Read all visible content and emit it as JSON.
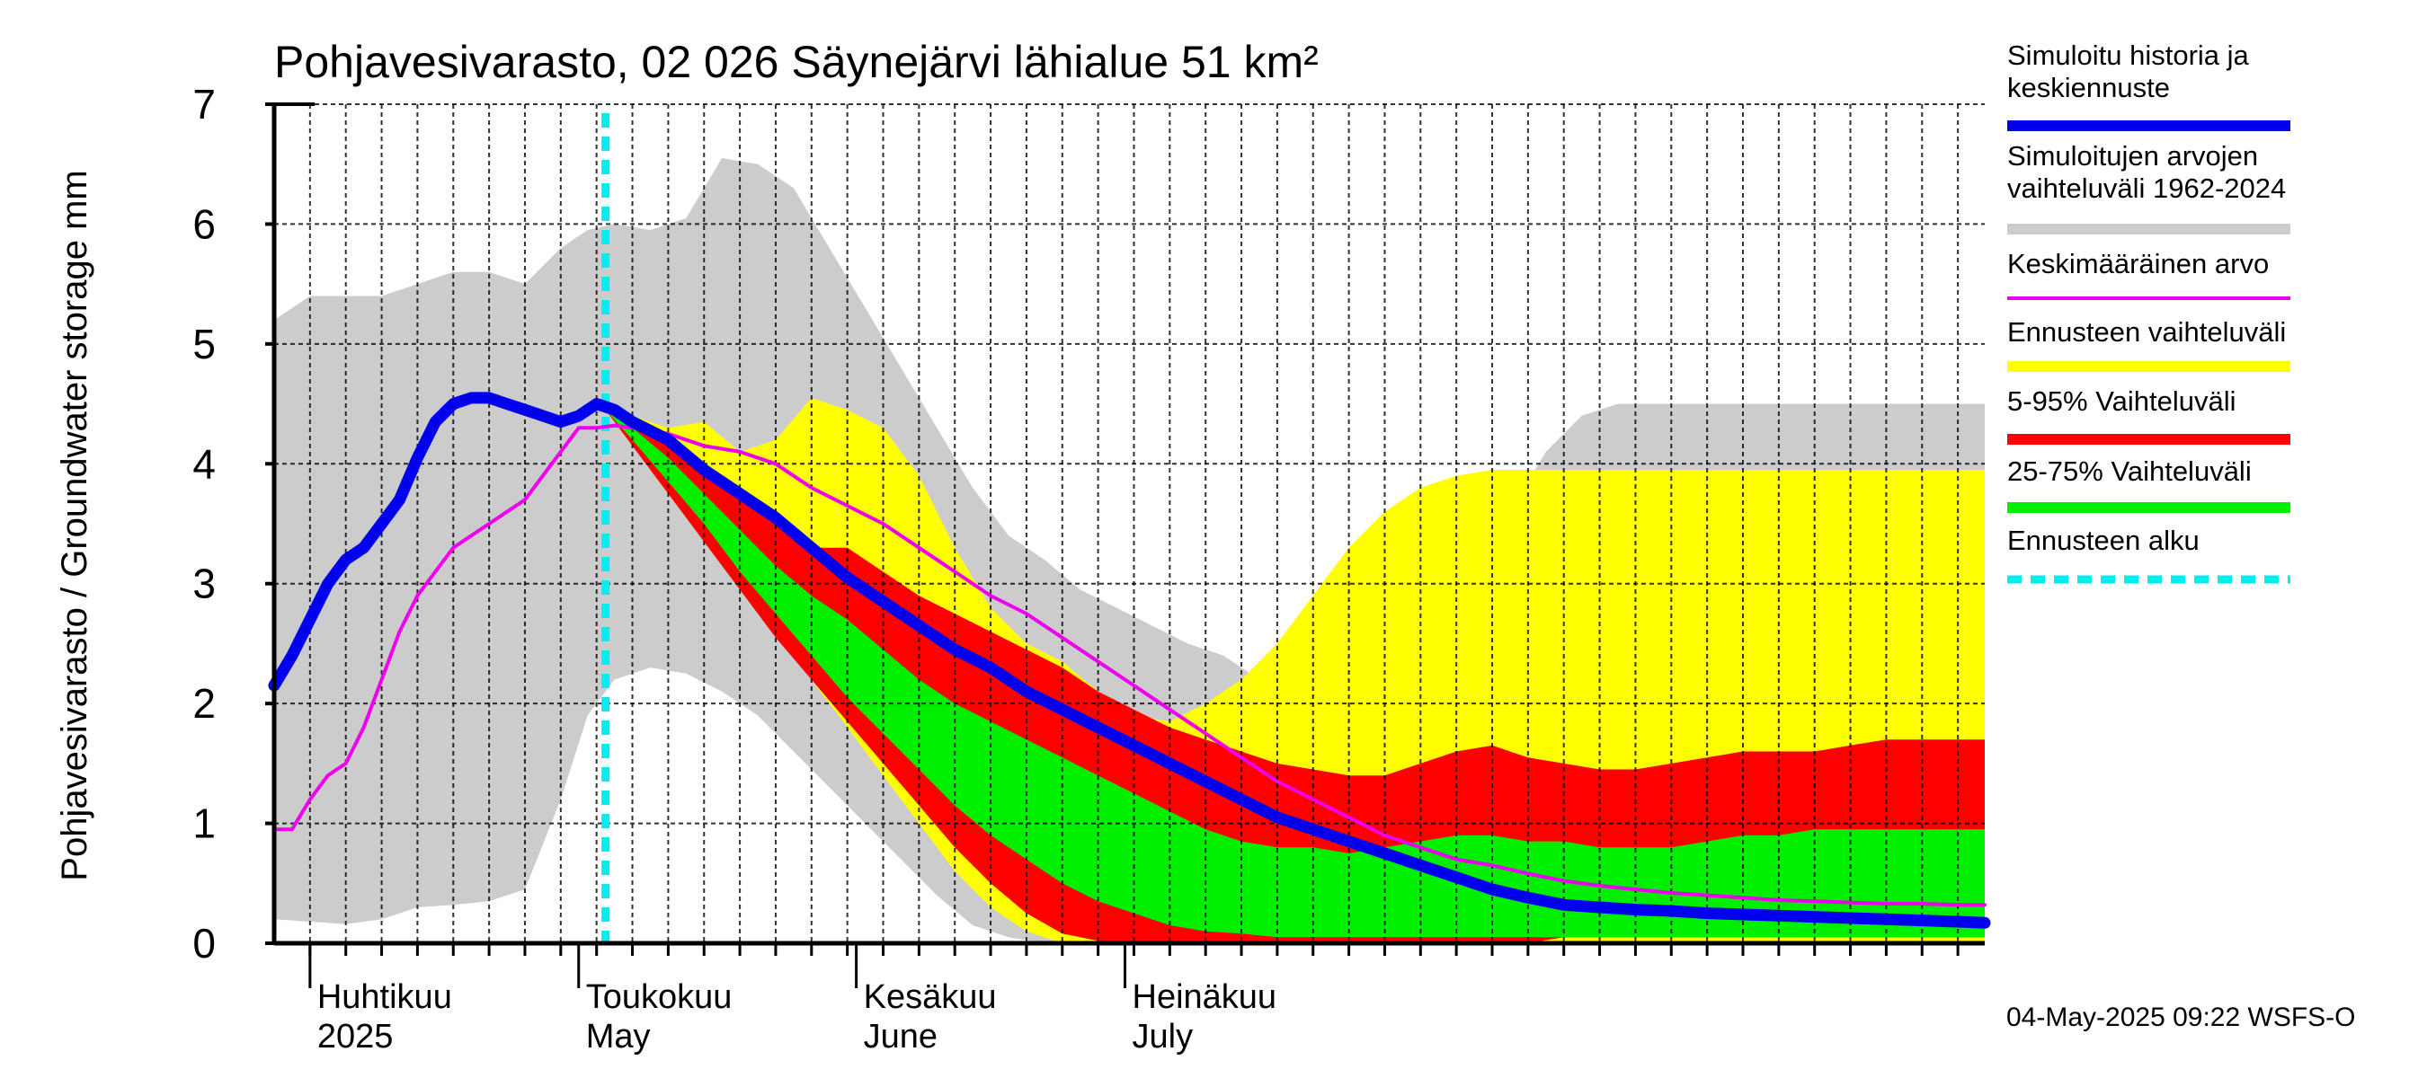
{
  "chart_data": {
    "type": "area",
    "title": "Pohjavesivarasto, 02 026 Säynejärvi lähialue 51 km²",
    "ylabel": "Pohjavesivarasto / Groundwater storage   mm",
    "ylim": [
      0,
      7
    ],
    "y_ticks": [
      "0",
      "1",
      "2",
      "3",
      "4",
      "5",
      "6",
      "7"
    ],
    "xlim_days": [
      -4,
      187
    ],
    "x_axis_note": "Day 0 = 2025-04-01",
    "month_labels": [
      {
        "day": 0,
        "fi": "Huhtikuu",
        "en": "2025"
      },
      {
        "day": 30,
        "fi": "Toukokuu",
        "en": "May"
      },
      {
        "day": 61,
        "fi": "Kesäkuu",
        "en": "June"
      },
      {
        "day": 91,
        "fi": "Heinäkuu",
        "en": "July"
      }
    ],
    "forecast_start_day": 33,
    "footer": "04-May-2025 09:22 WSFS-O",
    "legend": [
      {
        "label": "Simuloitu historia ja keskiennuste",
        "color": "#0000ee"
      },
      {
        "label": "Simuloitujen arvojen vaihteluväli 1962-2024",
        "color": "#cccccc"
      },
      {
        "label": "Keskimääräinen arvo",
        "color": "#ee00ee"
      },
      {
        "label": "Ennusteen vaihteluväli",
        "color": "#ffff00"
      },
      {
        "label": "5-95% Vaihteluväli",
        "color": "#ff0000"
      },
      {
        "label": "25-75% Vaihteluväli",
        "color": "#00ee00"
      },
      {
        "label": "Ennusteen alku",
        "color": "#00eeee"
      }
    ],
    "series": [
      {
        "name": "Simuloitujen arvojen vaihteluväli 1962-2024",
        "kind": "band",
        "x": [
          -4,
          0,
          4,
          8,
          12,
          16,
          20,
          24,
          28,
          31,
          34,
          38,
          42,
          46,
          50,
          54,
          58,
          62,
          66,
          70,
          74,
          78,
          82,
          86,
          90,
          94,
          98,
          102,
          106,
          110,
          114,
          118,
          122,
          126,
          130,
          134,
          138,
          142,
          146,
          150,
          154,
          158,
          162,
          166,
          170,
          174,
          178,
          182,
          187
        ],
        "upper": [
          5.2,
          5.4,
          5.4,
          5.4,
          5.5,
          5.6,
          5.6,
          5.5,
          5.8,
          5.95,
          6.0,
          5.95,
          6.05,
          6.55,
          6.5,
          6.3,
          5.8,
          5.3,
          4.8,
          4.3,
          3.8,
          3.4,
          3.2,
          2.95,
          2.8,
          2.65,
          2.5,
          2.4,
          2.2,
          2.05,
          2.0,
          2.3,
          2.55,
          2.6,
          3.0,
          3.6,
          4.1,
          4.4,
          4.5,
          4.5,
          4.5,
          4.5,
          4.5,
          4.5,
          4.5,
          4.5,
          4.5,
          4.5,
          4.5
        ],
        "lower": [
          0.2,
          0.18,
          0.16,
          0.2,
          0.3,
          0.32,
          0.35,
          0.45,
          1.2,
          1.9,
          2.2,
          2.3,
          2.25,
          2.1,
          1.9,
          1.6,
          1.3,
          1.0,
          0.7,
          0.4,
          0.15,
          0.05,
          0.0,
          0.0,
          0.0,
          0.0,
          0.0,
          0.0,
          0.0,
          0.0,
          0.0,
          0.0,
          0.0,
          0.0,
          0.0,
          0.0,
          0.0,
          0.0,
          0.0,
          0.0,
          0.0,
          0.0,
          0.0,
          0.0,
          0.0,
          0.0,
          0.0,
          0.0,
          0.0
        ]
      },
      {
        "name": "Ennusteen vaihteluväli",
        "kind": "band",
        "x": [
          33,
          36,
          40,
          44,
          48,
          52,
          56,
          60,
          64,
          68,
          72,
          76,
          80,
          84,
          88,
          92,
          96,
          100,
          104,
          108,
          112,
          116,
          120,
          124,
          128,
          132,
          136,
          140,
          144,
          148,
          152,
          156,
          160,
          164,
          168,
          172,
          176,
          180,
          184,
          187
        ],
        "upper": [
          4.45,
          4.4,
          4.3,
          4.35,
          4.1,
          4.2,
          4.55,
          4.45,
          4.3,
          3.9,
          3.3,
          2.8,
          2.5,
          2.35,
          2.1,
          1.9,
          1.85,
          2.0,
          2.2,
          2.5,
          2.9,
          3.3,
          3.6,
          3.8,
          3.9,
          3.95,
          3.95,
          3.95,
          3.95,
          3.95,
          3.95,
          3.95,
          3.95,
          3.95,
          3.95,
          3.95,
          3.95,
          3.95,
          3.95,
          3.95
        ],
        "lower": [
          4.45,
          4.2,
          3.8,
          3.4,
          3.0,
          2.6,
          2.2,
          1.8,
          1.4,
          1.0,
          0.6,
          0.3,
          0.1,
          0.0,
          0.0,
          0.0,
          0.0,
          0.0,
          0.0,
          0.0,
          0.0,
          0.0,
          0.0,
          0.0,
          0.0,
          0.0,
          0.0,
          0.0,
          0.0,
          0.0,
          0.0,
          0.0,
          0.0,
          0.0,
          0.0,
          0.0,
          0.0,
          0.0,
          0.0,
          0.0
        ]
      },
      {
        "name": "5-95% Vaihteluväli",
        "kind": "band",
        "x": [
          33,
          36,
          40,
          44,
          48,
          52,
          56,
          60,
          64,
          68,
          72,
          76,
          80,
          84,
          88,
          92,
          96,
          100,
          104,
          108,
          112,
          116,
          120,
          124,
          128,
          132,
          136,
          140,
          144,
          148,
          152,
          156,
          160,
          164,
          168,
          172,
          176,
          180,
          184,
          187
        ],
        "upper": [
          4.45,
          4.35,
          4.2,
          4.0,
          3.75,
          3.5,
          3.3,
          3.3,
          3.1,
          2.9,
          2.75,
          2.6,
          2.45,
          2.3,
          2.1,
          1.95,
          1.8,
          1.7,
          1.6,
          1.5,
          1.45,
          1.4,
          1.4,
          1.5,
          1.6,
          1.65,
          1.55,
          1.5,
          1.45,
          1.45,
          1.5,
          1.55,
          1.6,
          1.6,
          1.6,
          1.65,
          1.7,
          1.7,
          1.7,
          1.7
        ],
        "lower": [
          4.45,
          4.15,
          3.75,
          3.35,
          2.95,
          2.55,
          2.2,
          1.85,
          1.5,
          1.15,
          0.8,
          0.5,
          0.25,
          0.08,
          0.02,
          0.0,
          0.0,
          0.0,
          0.0,
          0.0,
          0.0,
          0.0,
          0.0,
          0.0,
          0.0,
          0.0,
          0.0,
          0.05,
          0.05,
          0.05,
          0.05,
          0.05,
          0.05,
          0.05,
          0.05,
          0.05,
          0.05,
          0.05,
          0.05,
          0.05
        ]
      },
      {
        "name": "25-75% Vaihteluväli",
        "kind": "band",
        "x": [
          33,
          36,
          40,
          44,
          48,
          52,
          56,
          60,
          64,
          68,
          72,
          76,
          80,
          84,
          88,
          92,
          96,
          100,
          104,
          108,
          112,
          116,
          120,
          124,
          128,
          132,
          136,
          140,
          144,
          148,
          152,
          156,
          160,
          164,
          168,
          172,
          176,
          180,
          184,
          187
        ],
        "upper": [
          4.45,
          4.3,
          4.05,
          3.75,
          3.45,
          3.15,
          2.9,
          2.7,
          2.45,
          2.2,
          2.0,
          1.85,
          1.7,
          1.55,
          1.4,
          1.25,
          1.1,
          0.95,
          0.85,
          0.8,
          0.8,
          0.75,
          0.8,
          0.85,
          0.9,
          0.9,
          0.85,
          0.85,
          0.8,
          0.8,
          0.8,
          0.85,
          0.9,
          0.9,
          0.95,
          0.95,
          0.95,
          0.95,
          0.95,
          0.95
        ],
        "lower": [
          4.45,
          4.2,
          3.85,
          3.5,
          3.1,
          2.75,
          2.4,
          2.05,
          1.75,
          1.45,
          1.15,
          0.9,
          0.7,
          0.5,
          0.35,
          0.25,
          0.15,
          0.1,
          0.08,
          0.05,
          0.05,
          0.05,
          0.05,
          0.05,
          0.05,
          0.05,
          0.05,
          0.05,
          0.05,
          0.05,
          0.05,
          0.05,
          0.05,
          0.05,
          0.05,
          0.05,
          0.05,
          0.05,
          0.05,
          0.05
        ]
      },
      {
        "name": "Keskimääräinen arvo",
        "kind": "line",
        "x": [
          -4,
          -2,
          0,
          2,
          4,
          6,
          8,
          10,
          12,
          14,
          16,
          18,
          20,
          22,
          24,
          26,
          28,
          30,
          32,
          34,
          36,
          40,
          44,
          48,
          52,
          56,
          60,
          64,
          68,
          72,
          76,
          80,
          84,
          88,
          92,
          96,
          100,
          104,
          108,
          112,
          116,
          120,
          124,
          128,
          132,
          136,
          140,
          144,
          148,
          152,
          156,
          160,
          164,
          168,
          172,
          176,
          180,
          184,
          187
        ],
        "values": [
          0.95,
          0.95,
          1.2,
          1.4,
          1.5,
          1.8,
          2.2,
          2.6,
          2.9,
          3.1,
          3.3,
          3.4,
          3.5,
          3.6,
          3.7,
          3.9,
          4.1,
          4.3,
          4.3,
          4.32,
          4.3,
          4.25,
          4.15,
          4.1,
          4.0,
          3.8,
          3.65,
          3.5,
          3.3,
          3.1,
          2.9,
          2.75,
          2.55,
          2.35,
          2.15,
          1.95,
          1.75,
          1.55,
          1.35,
          1.2,
          1.05,
          0.9,
          0.8,
          0.7,
          0.65,
          0.58,
          0.52,
          0.48,
          0.45,
          0.42,
          0.4,
          0.38,
          0.36,
          0.35,
          0.34,
          0.33,
          0.33,
          0.32,
          0.32
        ]
      },
      {
        "name": "Simuloitu historia ja keskiennuste",
        "kind": "line",
        "x": [
          -4,
          -2,
          0,
          2,
          4,
          6,
          8,
          10,
          12,
          14,
          16,
          18,
          20,
          22,
          24,
          26,
          28,
          30,
          32,
          34,
          36,
          40,
          44,
          48,
          52,
          56,
          60,
          64,
          68,
          72,
          76,
          80,
          84,
          88,
          92,
          96,
          100,
          104,
          108,
          112,
          116,
          120,
          124,
          128,
          132,
          136,
          140,
          144,
          148,
          152,
          156,
          160,
          164,
          168,
          172,
          176,
          180,
          184,
          187
        ],
        "values": [
          2.15,
          2.4,
          2.7,
          3.0,
          3.2,
          3.3,
          3.5,
          3.7,
          4.05,
          4.35,
          4.5,
          4.55,
          4.55,
          4.5,
          4.45,
          4.4,
          4.35,
          4.4,
          4.5,
          4.45,
          4.35,
          4.2,
          3.95,
          3.75,
          3.55,
          3.3,
          3.05,
          2.85,
          2.65,
          2.45,
          2.3,
          2.1,
          1.95,
          1.8,
          1.65,
          1.5,
          1.35,
          1.2,
          1.05,
          0.95,
          0.85,
          0.75,
          0.65,
          0.55,
          0.45,
          0.38,
          0.32,
          0.3,
          0.28,
          0.27,
          0.25,
          0.24,
          0.23,
          0.22,
          0.21,
          0.2,
          0.19,
          0.18,
          0.17
        ]
      }
    ]
  }
}
